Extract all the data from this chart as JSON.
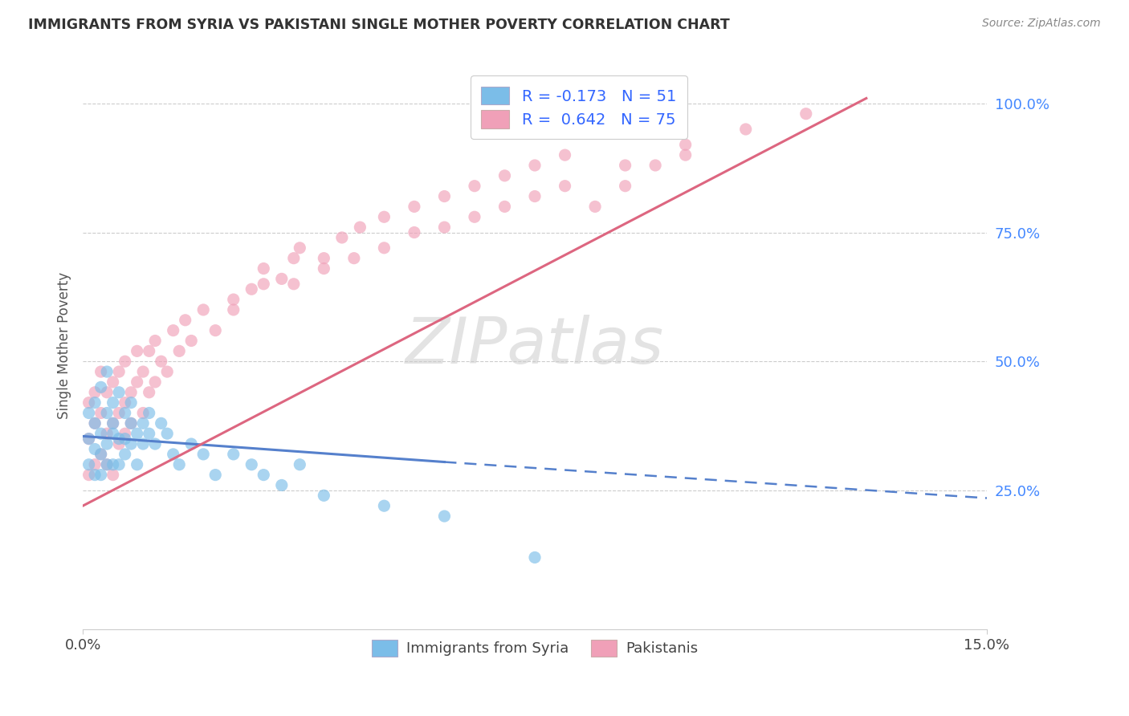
{
  "title": "IMMIGRANTS FROM SYRIA VS PAKISTANI SINGLE MOTHER POVERTY CORRELATION CHART",
  "source": "Source: ZipAtlas.com",
  "ylabel": "Single Mother Poverty",
  "xlim": [
    0.0,
    0.15
  ],
  "ylim": [
    -0.02,
    1.08
  ],
  "xtick_positions": [
    0.0,
    0.15
  ],
  "xtick_labels": [
    "0.0%",
    "15.0%"
  ],
  "ytick_positions": [
    0.25,
    0.5,
    0.75,
    1.0
  ],
  "ytick_labels": [
    "25.0%",
    "50.0%",
    "75.0%",
    "100.0%"
  ],
  "blue_scatter_color": "#7bbde8",
  "pink_scatter_color": "#f0a0b8",
  "blue_line_color": "#5580cc",
  "pink_line_color": "#dd6680",
  "legend_footer_blue": "Immigrants from Syria",
  "legend_footer_pink": "Pakistanis",
  "R_blue": -0.173,
  "N_blue": 51,
  "R_pink": 0.642,
  "N_pink": 75,
  "watermark": "ZIPatlas",
  "blue_line_x0": 0.0,
  "blue_line_y0": 0.355,
  "blue_line_x1": 0.06,
  "blue_line_y1": 0.305,
  "blue_line_x1dash": 0.06,
  "blue_line_y1dash": 0.305,
  "blue_line_x2": 0.15,
  "blue_line_y2": 0.235,
  "pink_line_x0": 0.0,
  "pink_line_y0": 0.22,
  "pink_line_x1": 0.13,
  "pink_line_y1": 1.01,
  "blue_scatter_x": [
    0.001,
    0.001,
    0.001,
    0.002,
    0.002,
    0.002,
    0.002,
    0.003,
    0.003,
    0.003,
    0.003,
    0.004,
    0.004,
    0.004,
    0.004,
    0.005,
    0.005,
    0.005,
    0.005,
    0.006,
    0.006,
    0.006,
    0.007,
    0.007,
    0.007,
    0.008,
    0.008,
    0.008,
    0.009,
    0.009,
    0.01,
    0.01,
    0.011,
    0.011,
    0.012,
    0.013,
    0.014,
    0.015,
    0.016,
    0.018,
    0.02,
    0.022,
    0.025,
    0.028,
    0.03,
    0.033,
    0.036,
    0.04,
    0.05,
    0.06,
    0.075
  ],
  "blue_scatter_y": [
    0.3,
    0.35,
    0.4,
    0.28,
    0.38,
    0.33,
    0.42,
    0.32,
    0.36,
    0.45,
    0.28,
    0.34,
    0.4,
    0.48,
    0.3,
    0.36,
    0.42,
    0.3,
    0.38,
    0.35,
    0.44,
    0.3,
    0.4,
    0.35,
    0.32,
    0.38,
    0.34,
    0.42,
    0.36,
    0.3,
    0.38,
    0.34,
    0.36,
    0.4,
    0.34,
    0.38,
    0.36,
    0.32,
    0.3,
    0.34,
    0.32,
    0.28,
    0.32,
    0.3,
    0.28,
    0.26,
    0.3,
    0.24,
    0.22,
    0.2,
    0.12
  ],
  "pink_scatter_x": [
    0.001,
    0.001,
    0.001,
    0.002,
    0.002,
    0.002,
    0.003,
    0.003,
    0.003,
    0.004,
    0.004,
    0.004,
    0.005,
    0.005,
    0.005,
    0.006,
    0.006,
    0.006,
    0.007,
    0.007,
    0.007,
    0.008,
    0.008,
    0.009,
    0.009,
    0.01,
    0.01,
    0.011,
    0.011,
    0.012,
    0.012,
    0.013,
    0.014,
    0.015,
    0.016,
    0.017,
    0.018,
    0.02,
    0.022,
    0.025,
    0.028,
    0.03,
    0.033,
    0.036,
    0.04,
    0.043,
    0.046,
    0.05,
    0.055,
    0.06,
    0.065,
    0.07,
    0.075,
    0.08,
    0.085,
    0.09,
    0.095,
    0.1,
    0.11,
    0.12,
    0.025,
    0.03,
    0.035,
    0.04,
    0.05,
    0.06,
    0.07,
    0.08,
    0.09,
    0.1,
    0.035,
    0.045,
    0.055,
    0.065,
    0.075
  ],
  "pink_scatter_y": [
    0.28,
    0.35,
    0.42,
    0.3,
    0.38,
    0.44,
    0.32,
    0.4,
    0.48,
    0.36,
    0.44,
    0.3,
    0.38,
    0.46,
    0.28,
    0.4,
    0.48,
    0.34,
    0.42,
    0.5,
    0.36,
    0.44,
    0.38,
    0.46,
    0.52,
    0.4,
    0.48,
    0.44,
    0.52,
    0.46,
    0.54,
    0.5,
    0.48,
    0.56,
    0.52,
    0.58,
    0.54,
    0.6,
    0.56,
    0.62,
    0.64,
    0.68,
    0.66,
    0.72,
    0.7,
    0.74,
    0.76,
    0.78,
    0.8,
    0.82,
    0.84,
    0.86,
    0.88,
    0.9,
    0.8,
    0.84,
    0.88,
    0.92,
    0.95,
    0.98,
    0.6,
    0.65,
    0.7,
    0.68,
    0.72,
    0.76,
    0.8,
    0.84,
    0.88,
    0.9,
    0.65,
    0.7,
    0.75,
    0.78,
    0.82
  ]
}
